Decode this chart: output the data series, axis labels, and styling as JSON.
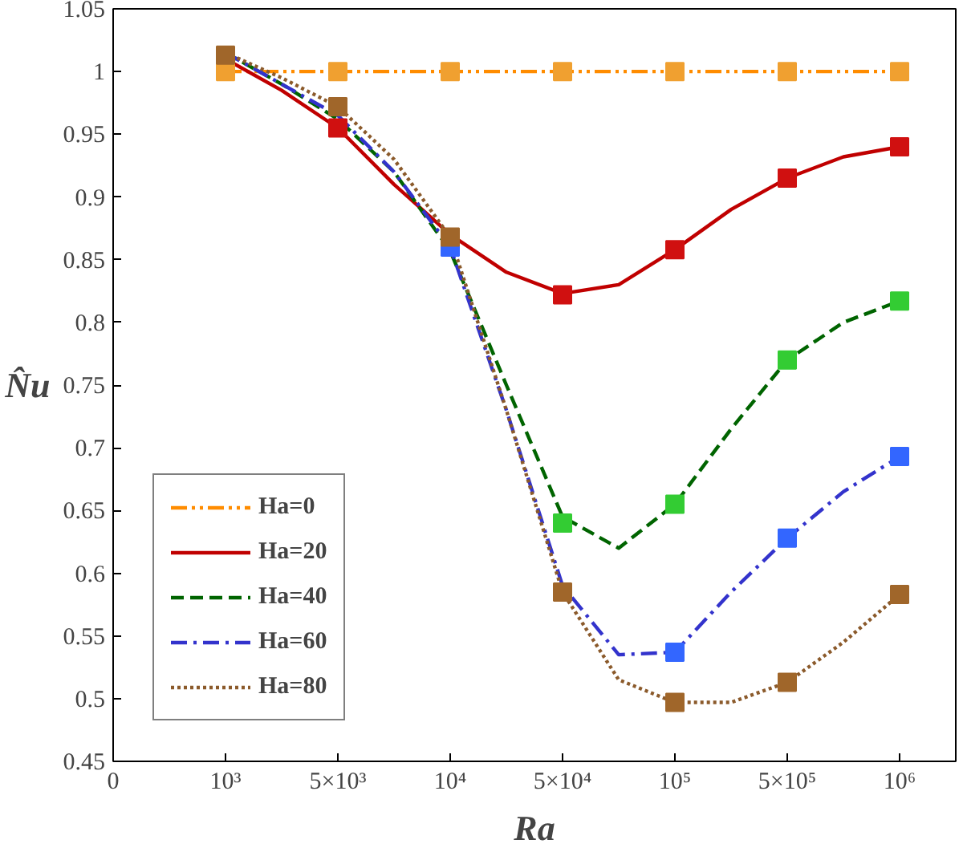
{
  "chart_data": {
    "type": "line",
    "xlabel": "Ra",
    "ylabel": "N̂u",
    "categories": [
      "0",
      null,
      "10³",
      null,
      "5×10³",
      null,
      "10⁴",
      null,
      "5×10⁴",
      null,
      "10⁵",
      null,
      "5×10⁵",
      null,
      "10⁶",
      null
    ],
    "ylim": [
      0.45,
      1.05
    ],
    "yticks": [
      0.45,
      0.5,
      0.55,
      0.6,
      0.65,
      0.7,
      0.75,
      0.8,
      0.85,
      0.9,
      0.95,
      1,
      1.05
    ],
    "grid": false,
    "legend": "bottom left",
    "series": [
      {
        "name": "Ha=0",
        "color": "#ff8c00",
        "line_style": "dashdotdot",
        "values": [
          null,
          null,
          1.0,
          1.0,
          1.0,
          1.0,
          1.0,
          1.0,
          1.0,
          1.0,
          1.0,
          1.0,
          1.0,
          1.0,
          1.0,
          null
        ]
      },
      {
        "name": "Ha=20",
        "color": "#c00000",
        "line_style": "solid",
        "values": [
          null,
          null,
          1.01,
          0.985,
          0.955,
          0.91,
          0.87,
          0.84,
          0.823,
          0.83,
          0.858,
          0.89,
          0.915,
          0.932,
          0.94,
          null
        ]
      },
      {
        "name": "Ha=40",
        "color": "#006400",
        "line_style": "dashed",
        "values": [
          null,
          null,
          1.015,
          0.99,
          0.962,
          0.92,
          0.857,
          0.75,
          0.645,
          0.62,
          0.655,
          0.715,
          0.77,
          0.8,
          0.817,
          null
        ]
      },
      {
        "name": "Ha=60",
        "color": "#3333cc",
        "line_style": "dashdot",
        "values": [
          null,
          null,
          1.015,
          0.99,
          0.965,
          0.92,
          0.86,
          0.73,
          0.59,
          0.535,
          0.537,
          0.585,
          0.628,
          0.665,
          0.693,
          null
        ]
      },
      {
        "name": "Ha=80",
        "color": "#8b5a2b",
        "line_style": "dotted",
        "values": [
          null,
          null,
          1.015,
          0.995,
          0.972,
          0.93,
          0.868,
          0.73,
          0.585,
          0.515,
          0.497,
          0.497,
          0.513,
          0.545,
          0.583,
          null
        ]
      },
      {
        "type": "scatter",
        "marker": "square",
        "color": "#f0a030",
        "values": [
          null,
          null,
          1.0,
          null,
          1.0,
          null,
          1.0,
          null,
          1.0,
          null,
          1.0,
          null,
          1.0,
          null,
          1.0,
          null
        ]
      },
      {
        "type": "scatter",
        "marker": "square",
        "color": "#d01010",
        "values": [
          null,
          null,
          null,
          null,
          0.955,
          null,
          null,
          null,
          0.822,
          null,
          0.858,
          null,
          0.915,
          null,
          0.94,
          null
        ]
      },
      {
        "type": "scatter",
        "marker": "square",
        "color": "#33cc33",
        "values": [
          null,
          null,
          null,
          null,
          null,
          null,
          null,
          null,
          0.64,
          null,
          0.655,
          null,
          0.77,
          null,
          0.817,
          null
        ]
      },
      {
        "type": "scatter",
        "marker": "square",
        "color": "#3366ff",
        "values": [
          null,
          null,
          null,
          null,
          null,
          null,
          0.86,
          null,
          null,
          null,
          0.537,
          null,
          0.628,
          null,
          0.693,
          null
        ]
      },
      {
        "type": "scatter",
        "marker": "square",
        "color": "#a0662a",
        "values": [
          null,
          null,
          1.013,
          null,
          0.972,
          null,
          0.868,
          null,
          0.585,
          null,
          0.497,
          null,
          0.513,
          null,
          0.583,
          null
        ]
      }
    ]
  }
}
